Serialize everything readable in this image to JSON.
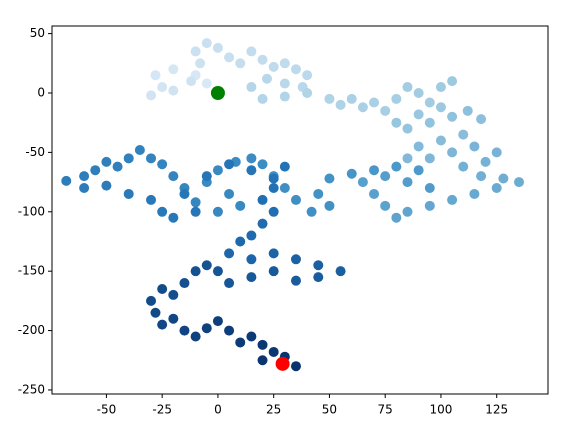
{
  "chart_data": {
    "type": "scatter",
    "x": [
      0,
      -5,
      -10,
      -20,
      -28,
      -25,
      -30,
      -20,
      -12,
      -8,
      -10,
      -5,
      0,
      5,
      10,
      15,
      20,
      25,
      30,
      35,
      40,
      38,
      30,
      22,
      15,
      20,
      30,
      40,
      50,
      55,
      60,
      65,
      70,
      75,
      80,
      85,
      90,
      95,
      100,
      105,
      100,
      90,
      80,
      85,
      95,
      105,
      112,
      118,
      110,
      100,
      90,
      85,
      95,
      105,
      115,
      125,
      120,
      110,
      118,
      128,
      135,
      125,
      115,
      105,
      95,
      85,
      80,
      75,
      70,
      65,
      75,
      85,
      95,
      90,
      80,
      70,
      60,
      50,
      45,
      50,
      42,
      35,
      30,
      25,
      20,
      15,
      8,
      0,
      -5,
      5,
      10,
      0,
      -10,
      -15,
      -20,
      -25,
      -30,
      -35,
      -40,
      -45,
      -50,
      -55,
      -60,
      -68,
      -60,
      -50,
      -40,
      -30,
      -25,
      -20,
      -10,
      -15,
      -5,
      5,
      15,
      25,
      30,
      25,
      20,
      25,
      20,
      15,
      10,
      5,
      15,
      25,
      35,
      45,
      55,
      45,
      35,
      25,
      15,
      5,
      0,
      -5,
      -10,
      -15,
      -20,
      -25,
      -30,
      -28,
      -25,
      -20,
      -15,
      -10,
      -5,
      0,
      5,
      10,
      15,
      20,
      25,
      20,
      30,
      35,
      29
    ],
    "y": [
      0,
      8,
      15,
      20,
      15,
      5,
      -2,
      2,
      10,
      25,
      35,
      42,
      38,
      30,
      25,
      35,
      28,
      22,
      25,
      20,
      15,
      5,
      8,
      12,
      5,
      -5,
      -3,
      0,
      -5,
      -10,
      -5,
      -12,
      -8,
      -15,
      -5,
      5,
      0,
      -8,
      5,
      10,
      -12,
      -18,
      -25,
      -30,
      -25,
      -20,
      -15,
      -22,
      -35,
      -40,
      -45,
      -55,
      -55,
      -50,
      -45,
      -50,
      -58,
      -62,
      -70,
      -72,
      -75,
      -80,
      -85,
      -90,
      -95,
      -100,
      -105,
      -95,
      -85,
      -75,
      -70,
      -75,
      -80,
      -65,
      -62,
      -65,
      -68,
      -72,
      -85,
      -95,
      -100,
      -90,
      -80,
      -70,
      -60,
      -55,
      -58,
      -65,
      -75,
      -85,
      -95,
      -100,
      -92,
      -80,
      -70,
      -60,
      -55,
      -48,
      -55,
      -62,
      -58,
      -65,
      -70,
      -74,
      -80,
      -78,
      -85,
      -90,
      -100,
      -105,
      -100,
      -85,
      -70,
      -60,
      -65,
      -72,
      -62,
      -80,
      -90,
      -100,
      -110,
      -120,
      -125,
      -135,
      -140,
      -135,
      -140,
      -145,
      -150,
      -155,
      -158,
      -150,
      -155,
      -160,
      -150,
      -145,
      -150,
      -160,
      -170,
      -165,
      -175,
      -185,
      -195,
      -190,
      -200,
      -205,
      -198,
      -192,
      -200,
      -210,
      -205,
      -212,
      -218,
      -225,
      -222,
      -230,
      -228
    ],
    "colormap": [
      "#dbe9f6",
      "#9ecae1",
      "#4292c6",
      "#2171b5",
      "#08306b"
    ],
    "start": {
      "x": 0,
      "y": 0,
      "color": "#008000"
    },
    "end": {
      "x": 29,
      "y": -228,
      "color": "#ff0000"
    },
    "xlim": [
      -74.4,
      148
    ],
    "ylim": [
      -253.4,
      56.4
    ],
    "xticks": [
      -50,
      -25,
      0,
      25,
      50,
      75,
      100,
      125
    ],
    "yticks": [
      -250,
      -200,
      -150,
      -100,
      -50,
      0,
      50
    ],
    "grid": false
  }
}
